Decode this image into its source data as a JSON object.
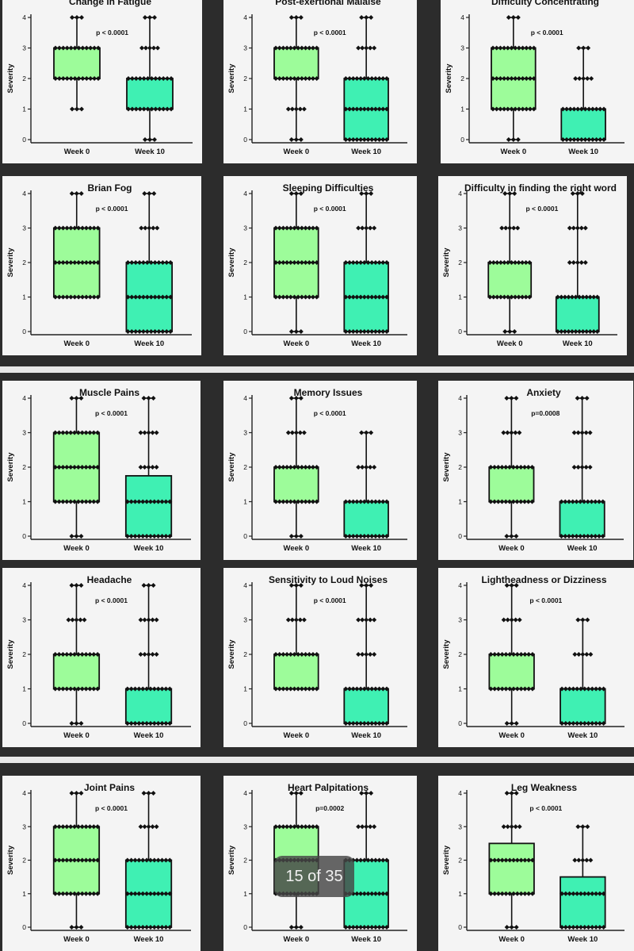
{
  "pager": {
    "label": "15 of 35"
  },
  "colors": {
    "week0_fill": "#9dfc9a",
    "week10_fill": "#3ff0b3",
    "stroke": "#111111"
  },
  "chart_data": [
    {
      "type": "box",
      "title": "Change in Fatigue",
      "ylabel": "Severity",
      "ylim": [
        0,
        4
      ],
      "yticks": [
        0,
        1,
        2,
        3,
        4
      ],
      "categories": [
        "Week 0",
        "Week 10"
      ],
      "annotation": "p < 0.0001",
      "series": [
        {
          "name": "Week 0",
          "min": 1,
          "q1": 2,
          "median": 2,
          "q3": 3,
          "max": 4,
          "points": [
            1,
            2,
            3,
            4
          ]
        },
        {
          "name": "Week 10",
          "min": 0,
          "q1": 1,
          "median": 1,
          "q3": 2,
          "max": 4,
          "points": [
            0,
            1,
            2,
            3,
            4
          ]
        }
      ]
    },
    {
      "type": "box",
      "title": "Post-exertional Malaise",
      "ylabel": "Severity",
      "ylim": [
        0,
        4
      ],
      "yticks": [
        0,
        1,
        2,
        3,
        4
      ],
      "categories": [
        "Week 0",
        "Week 10"
      ],
      "annotation": "p < 0.0001",
      "series": [
        {
          "name": "Week 0",
          "min": 0,
          "q1": 2,
          "median": 2,
          "q3": 3,
          "max": 4,
          "points": [
            0,
            1,
            2,
            3,
            4
          ]
        },
        {
          "name": "Week 10",
          "min": 0,
          "q1": 0,
          "median": 1,
          "q3": 2,
          "max": 4,
          "points": [
            0,
            1,
            2,
            3,
            4
          ]
        }
      ]
    },
    {
      "type": "box",
      "title": "Difficulty Concentrating",
      "ylabel": "Severity",
      "ylim": [
        0,
        4
      ],
      "yticks": [
        0,
        1,
        2,
        3,
        4
      ],
      "categories": [
        "Week 0",
        "Week 10"
      ],
      "annotation": "p < 0.0001",
      "series": [
        {
          "name": "Week 0",
          "min": 0,
          "q1": 1,
          "median": 2,
          "q3": 3,
          "max": 4,
          "points": [
            0,
            1,
            2,
            3,
            4
          ]
        },
        {
          "name": "Week 10",
          "min": 0,
          "q1": 0,
          "median": 0,
          "q3": 1,
          "max": 3,
          "points": [
            0,
            1,
            2,
            3
          ]
        }
      ]
    },
    {
      "type": "box",
      "title": "Brian Fog",
      "ylabel": "Severity",
      "ylim": [
        0,
        4
      ],
      "yticks": [
        0,
        1,
        2,
        3,
        4
      ],
      "categories": [
        "Week 0",
        "Week 10"
      ],
      "annotation": "p < 0.0001",
      "series": [
        {
          "name": "Week 0",
          "min": 1,
          "q1": 1,
          "median": 2,
          "q3": 3,
          "max": 4,
          "points": [
            1,
            2,
            3,
            4
          ]
        },
        {
          "name": "Week 10",
          "min": 0,
          "q1": 0,
          "median": 1,
          "q3": 2,
          "max": 4,
          "points": [
            0,
            1,
            2,
            3,
            4
          ]
        }
      ]
    },
    {
      "type": "box",
      "title": "Sleeping Difficulties",
      "ylabel": "Severity",
      "ylim": [
        0,
        4
      ],
      "yticks": [
        0,
        1,
        2,
        3,
        4
      ],
      "categories": [
        "Week 0",
        "Week 10"
      ],
      "annotation": "p < 0.0001",
      "series": [
        {
          "name": "Week 0",
          "min": 0,
          "q1": 1,
          "median": 2,
          "q3": 3,
          "max": 4,
          "points": [
            0,
            1,
            2,
            3,
            4
          ]
        },
        {
          "name": "Week 10",
          "min": 0,
          "q1": 0,
          "median": 0,
          "q3": 2,
          "max": 4,
          "points": [
            0,
            1,
            2,
            3,
            4
          ]
        }
      ]
    },
    {
      "type": "box",
      "title": "Difficulty in finding the right word",
      "ylabel": "Severity",
      "ylim": [
        0,
        4
      ],
      "yticks": [
        0,
        1,
        2,
        3,
        4
      ],
      "categories": [
        "Week 0",
        "Week 10"
      ],
      "annotation": "p < 0.0001",
      "series": [
        {
          "name": "Week 0",
          "min": 0,
          "q1": 1,
          "median": 1,
          "q3": 2,
          "max": 4,
          "points": [
            0,
            1,
            2,
            3,
            4
          ]
        },
        {
          "name": "Week 10",
          "min": 0,
          "q1": 0,
          "median": 0,
          "q3": 1,
          "max": 4,
          "points": [
            0,
            1,
            2,
            3,
            4
          ]
        }
      ]
    },
    {
      "type": "box",
      "title": "Muscle Pains",
      "ylabel": "Severity",
      "ylim": [
        0,
        4
      ],
      "yticks": [
        0,
        1,
        2,
        3,
        4
      ],
      "categories": [
        "Week 0",
        "Week 10"
      ],
      "annotation": "p < 0.0001",
      "series": [
        {
          "name": "Week 0",
          "min": 0,
          "q1": 1,
          "median": 2,
          "q3": 3,
          "max": 4,
          "points": [
            0,
            1,
            2,
            3,
            4
          ]
        },
        {
          "name": "Week 10",
          "min": 0,
          "q1": 0,
          "median": 1,
          "q3": 1.75,
          "max": 4,
          "points": [
            0,
            1,
            2,
            3,
            4
          ]
        }
      ]
    },
    {
      "type": "box",
      "title": "Memory Issues",
      "ylabel": "Severity",
      "ylim": [
        0,
        4
      ],
      "yticks": [
        0,
        1,
        2,
        3,
        4
      ],
      "categories": [
        "Week 0",
        "Week 10"
      ],
      "annotation": "p < 0.0001",
      "series": [
        {
          "name": "Week 0",
          "min": 0,
          "q1": 1,
          "median": 2,
          "q3": 2,
          "max": 4,
          "points": [
            0,
            1,
            2,
            3,
            4
          ]
        },
        {
          "name": "Week 10",
          "min": 0,
          "q1": 0,
          "median": 0,
          "q3": 1,
          "max": 3,
          "points": [
            0,
            1,
            2,
            3
          ]
        }
      ]
    },
    {
      "type": "box",
      "title": "Anxiety",
      "ylabel": "Severity",
      "ylim": [
        0,
        4
      ],
      "yticks": [
        0,
        1,
        2,
        3,
        4
      ],
      "categories": [
        "Week 0",
        "Week 10"
      ],
      "annotation": "p=0.0008",
      "series": [
        {
          "name": "Week 0",
          "min": 0,
          "q1": 1,
          "median": 1,
          "q3": 2,
          "max": 4,
          "points": [
            0,
            1,
            2,
            3,
            4
          ]
        },
        {
          "name": "Week 10",
          "min": 0,
          "q1": 0,
          "median": 0,
          "q3": 1,
          "max": 4,
          "points": [
            0,
            1,
            2,
            3,
            4
          ]
        }
      ]
    },
    {
      "type": "box",
      "title": "Headache",
      "ylabel": "Severity",
      "ylim": [
        0,
        4
      ],
      "yticks": [
        0,
        1,
        2,
        3,
        4
      ],
      "categories": [
        "Week 0",
        "Week 10"
      ],
      "annotation": "p < 0.0001",
      "series": [
        {
          "name": "Week 0",
          "min": 0,
          "q1": 1,
          "median": 1,
          "q3": 2,
          "max": 4,
          "points": [
            0,
            1,
            2,
            3,
            4
          ]
        },
        {
          "name": "Week 10",
          "min": 0,
          "q1": 0,
          "median": 0,
          "q3": 1,
          "max": 4,
          "points": [
            0,
            1,
            2,
            3,
            4
          ]
        }
      ]
    },
    {
      "type": "box",
      "title": "Sensitivity to Loud Noises",
      "ylabel": "Severity",
      "ylim": [
        0,
        4
      ],
      "yticks": [
        0,
        1,
        2,
        3,
        4
      ],
      "categories": [
        "Week 0",
        "Week 10"
      ],
      "annotation": "p < 0.0001",
      "series": [
        {
          "name": "Week 0",
          "min": 1,
          "q1": 1,
          "median": 1,
          "q3": 2,
          "max": 4,
          "points": [
            1,
            2,
            3,
            4
          ]
        },
        {
          "name": "Week 10",
          "min": 0,
          "q1": 0,
          "median": 0,
          "q3": 1,
          "max": 4,
          "points": [
            0,
            1,
            2,
            3,
            4
          ]
        }
      ]
    },
    {
      "type": "box",
      "title": "Lightheadness or Dizziness",
      "ylabel": "Severity",
      "ylim": [
        0,
        4
      ],
      "yticks": [
        0,
        1,
        2,
        3,
        4
      ],
      "categories": [
        "Week 0",
        "Week 10"
      ],
      "annotation": "p < 0.0001",
      "series": [
        {
          "name": "Week 0",
          "min": 0,
          "q1": 1,
          "median": 1,
          "q3": 2,
          "max": 4,
          "points": [
            0,
            1,
            2,
            3,
            4
          ]
        },
        {
          "name": "Week 10",
          "min": 0,
          "q1": 0,
          "median": 0,
          "q3": 1,
          "max": 3,
          "points": [
            0,
            1,
            2,
            3
          ]
        }
      ]
    },
    {
      "type": "box",
      "title": "Joint Pains",
      "ylabel": "Severity",
      "ylim": [
        0,
        4
      ],
      "yticks": [
        0,
        1,
        2,
        3,
        4
      ],
      "categories": [
        "Week 0",
        "Week 10"
      ],
      "annotation": "p < 0.0001",
      "series": [
        {
          "name": "Week 0",
          "min": 0,
          "q1": 1,
          "median": 2,
          "q3": 3,
          "max": 4,
          "points": [
            0,
            1,
            2,
            3,
            4
          ]
        },
        {
          "name": "Week 10",
          "min": 0,
          "q1": 0,
          "median": 1,
          "q3": 2,
          "max": 4,
          "points": [
            0,
            1,
            2,
            3,
            4
          ]
        }
      ]
    },
    {
      "type": "box",
      "title": "Heart Palpitations",
      "ylabel": "Severity",
      "ylim": [
        0,
        4
      ],
      "yticks": [
        0,
        1,
        2,
        3,
        4
      ],
      "categories": [
        "Week 0",
        "Week 10"
      ],
      "annotation": "p=0.0002",
      "series": [
        {
          "name": "Week 0",
          "min": 0,
          "q1": 1,
          "median": 2,
          "q3": 3,
          "max": 4,
          "points": [
            0,
            1,
            2,
            3,
            4
          ]
        },
        {
          "name": "Week 10",
          "min": 0,
          "q1": 0,
          "median": 0,
          "q3": 2,
          "max": 4,
          "points": [
            0,
            1,
            2,
            3,
            4
          ]
        }
      ]
    },
    {
      "type": "box",
      "title": "Leg Weakness",
      "ylabel": "Severity",
      "ylim": [
        0,
        4
      ],
      "yticks": [
        0,
        1,
        2,
        3,
        4
      ],
      "categories": [
        "Week 0",
        "Week 10"
      ],
      "annotation": "p < 0.0001",
      "series": [
        {
          "name": "Week 0",
          "min": 0,
          "q1": 1,
          "median": 2,
          "q3": 2.5,
          "max": 4,
          "points": [
            0,
            1,
            2,
            3,
            4
          ]
        },
        {
          "name": "Week 10",
          "min": 0,
          "q1": 0,
          "median": 1,
          "q3": 1.5,
          "max": 3,
          "points": [
            0,
            1,
            2,
            3
          ]
        }
      ]
    }
  ]
}
